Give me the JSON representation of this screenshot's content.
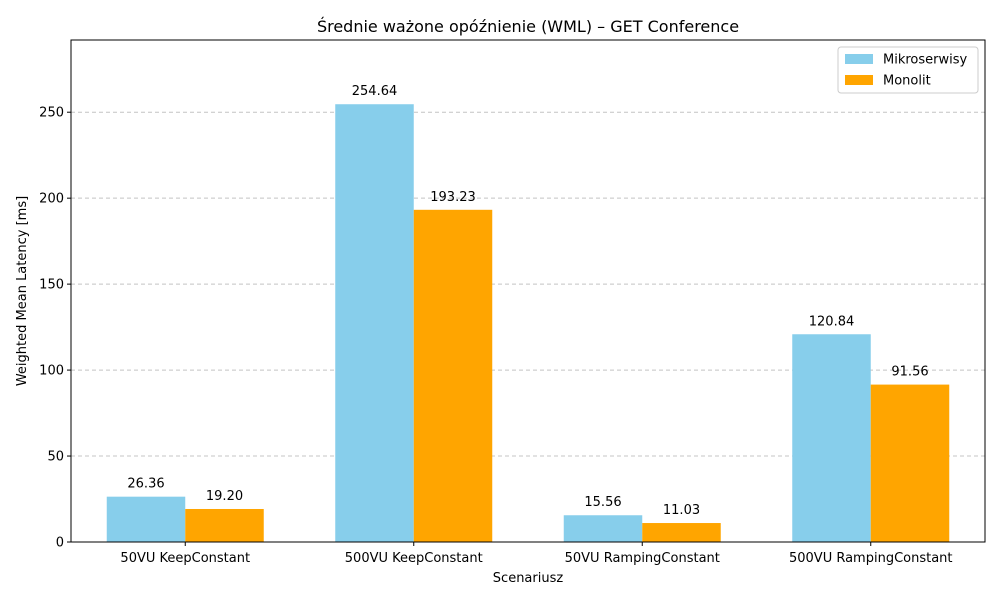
{
  "chart_data": {
    "type": "bar",
    "title": "Średnie ważone opóźnienie (WML) – GET Conference",
    "xlabel": "Scenariusz",
    "ylabel": "Weighted Mean Latency [ms]",
    "categories": [
      "50VU KeepConstant",
      "500VU KeepConstant",
      "50VU RampingConstant",
      "500VU RampingConstant"
    ],
    "series": [
      {
        "name": "Mikroserwisy",
        "color": "#87ceeb",
        "values": [
          26.36,
          254.64,
          15.56,
          120.84
        ],
        "labels": [
          "26.36",
          "254.64",
          "15.56",
          "120.84"
        ]
      },
      {
        "name": "Monolit",
        "color": "#ffa500",
        "values": [
          19.2,
          193.23,
          11.03,
          91.56
        ],
        "labels": [
          "19.20",
          "193.23",
          "11.03",
          "91.56"
        ]
      }
    ],
    "ylim": [
      0,
      292
    ],
    "yticks": [
      0,
      50,
      100,
      150,
      200,
      250
    ],
    "grid": "y-dashed",
    "legend_position": "top-right"
  }
}
